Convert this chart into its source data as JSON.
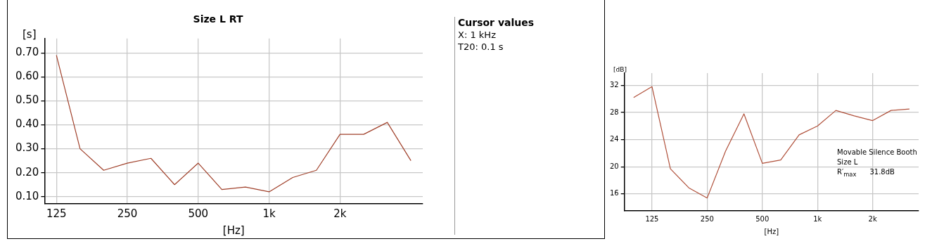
{
  "chart_data": [
    {
      "type": "line",
      "title": "Size L RT",
      "xlabel": "[Hz]",
      "ylabel": "[s]",
      "categories": [
        "125",
        null,
        null,
        "250",
        null,
        null,
        "500",
        null,
        null,
        "1k",
        null,
        null,
        "2k",
        null,
        null,
        null
      ],
      "series": [
        {
          "color": "#a0402a",
          "values": [
            0.69,
            0.3,
            0.21,
            0.24,
            0.26,
            0.15,
            0.24,
            0.13,
            0.14,
            0.12,
            0.18,
            0.21,
            0.36,
            0.36,
            0.41,
            0.25
          ]
        }
      ],
      "ylim": [
        0.07,
        0.76
      ],
      "yticks": [
        {
          "value": 0.1,
          "label": "0.10"
        },
        {
          "value": 0.2,
          "label": "0.20"
        },
        {
          "value": 0.3,
          "label": "0.30"
        },
        {
          "value": 0.4,
          "label": "0.40"
        },
        {
          "value": 0.5,
          "label": "0.50"
        },
        {
          "value": 0.6,
          "label": "0.60"
        },
        {
          "value": 0.7,
          "label": "0.70"
        }
      ],
      "grid": true,
      "legend": false,
      "marker": "none",
      "line_style": "solid",
      "annotations": [
        "Cursor values",
        "X: 1 kHz",
        "T20: 0.1 s"
      ]
    },
    {
      "type": "line",
      "xlabel": "[Hz]",
      "ylabel": "[dB]",
      "categories": [
        null,
        "125",
        null,
        null,
        "250",
        null,
        null,
        "500",
        null,
        null,
        "1k",
        null,
        null,
        "2k",
        null,
        null
      ],
      "series": [
        {
          "color": "#b0503a",
          "values": [
            30.2,
            31.8,
            19.7,
            16.9,
            15.4,
            22.3,
            27.8,
            20.5,
            21.0,
            24.7,
            26.0,
            28.3,
            27.5,
            26.8,
            28.3,
            28.5
          ]
        }
      ],
      "ylim": [
        13.5,
        33.8
      ],
      "yticks": [
        16,
        20,
        24,
        28,
        32
      ],
      "grid": true,
      "legend": false,
      "marker": "none",
      "line_style": "solid",
      "annotations": [
        "Movable Silence Booth",
        "Size L",
        "R′$_{max}$      31.8dB"
      ]
    }
  ]
}
